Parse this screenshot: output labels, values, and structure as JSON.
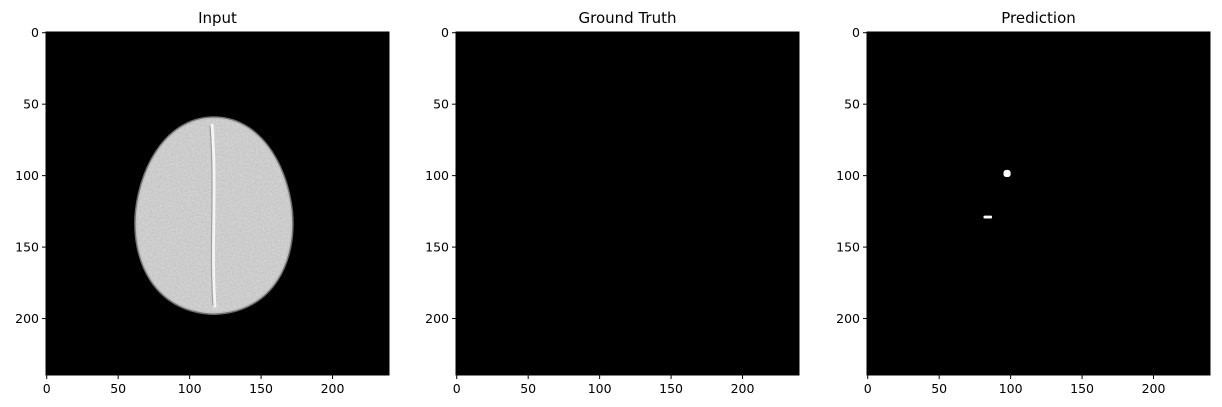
{
  "chart_data": [
    {
      "type": "image",
      "title": "Input",
      "content": "grayscale axial brain MRI slice on black background",
      "xlim": [
        -0.5,
        239.5
      ],
      "ylim": [
        239.5,
        -0.5
      ],
      "xticks": [
        0,
        50,
        100,
        150,
        200
      ],
      "yticks": [
        0,
        50,
        100,
        150,
        200
      ],
      "xtick_labels": [
        "0",
        "50",
        "100",
        "150",
        "200"
      ],
      "ytick_labels": [
        "0",
        "50",
        "100",
        "150",
        "200"
      ],
      "image_extent": {
        "brain_x_range": [
          63,
          175
        ],
        "brain_y_range": [
          59,
          196
        ],
        "brain_center": [
          117,
          128
        ]
      },
      "colors": {
        "background": "#000000",
        "tissue": "#d9d9d9",
        "midline": "#f4f4f4"
      }
    },
    {
      "type": "image",
      "title": "Ground Truth",
      "content": "empty mask (all black)",
      "xlim": [
        -0.5,
        239.5
      ],
      "ylim": [
        239.5,
        -0.5
      ],
      "xticks": [
        0,
        50,
        100,
        150,
        200
      ],
      "yticks": [
        0,
        50,
        100,
        150,
        200
      ],
      "xtick_labels": [
        "0",
        "50",
        "100",
        "150",
        "200"
      ],
      "ytick_labels": [
        "0",
        "50",
        "100",
        "150",
        "200"
      ],
      "colors": {
        "background": "#000000"
      }
    },
    {
      "type": "image",
      "title": "Prediction",
      "content": "binary mask with two small white regions",
      "xlim": [
        -0.5,
        239.5
      ],
      "ylim": [
        239.5,
        -0.5
      ],
      "xticks": [
        0,
        50,
        100,
        150,
        200
      ],
      "yticks": [
        0,
        50,
        100,
        150,
        200
      ],
      "xtick_labels": [
        "0",
        "50",
        "100",
        "150",
        "200"
      ],
      "ytick_labels": [
        "0",
        "50",
        "100",
        "150",
        "200"
      ],
      "blobs": [
        {
          "x": [
            95,
            100
          ],
          "y": [
            96,
            101
          ]
        },
        {
          "x": [
            81,
            87
          ],
          "y": [
            128,
            130
          ]
        }
      ],
      "colors": {
        "background": "#000000",
        "mask": "#ffffff"
      }
    }
  ]
}
